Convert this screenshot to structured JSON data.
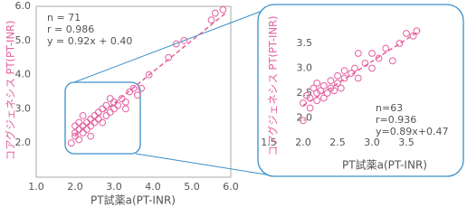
{
  "chart_data": [
    {
      "type": "scatter",
      "x_label": "PT試薬a(PT-INR)",
      "y_label": "コアグジェネシス PT(PT-INR)",
      "annotations": [
        "n = 71",
        "r = 0.986",
        "y = 0.92x + 0.40"
      ],
      "x": [
        1.9,
        2.0,
        2.0,
        2.1,
        2.1,
        2.2,
        2.2,
        2.3,
        2.3,
        2.4,
        2.4,
        2.5,
        2.5,
        2.6,
        2.6,
        2.7,
        2.7,
        2.8,
        2.8,
        2.9,
        3.0,
        3.0,
        3.1,
        3.2,
        3.3,
        3.4,
        3.5,
        3.6,
        2.2,
        2.0,
        2.4,
        3.7,
        3.9,
        4.4,
        4.6,
        4.8,
        5.5,
        5.6,
        5.8,
        3.3,
        2.9,
        2.1
      ],
      "series": [
        {
          "color": "#e4609f",
          "values": [
            2.0,
            2.3,
            2.5,
            2.4,
            2.6,
            2.3,
            2.5,
            2.6,
            2.4,
            2.7,
            2.5,
            2.6,
            2.8,
            2.7,
            2.9,
            2.6,
            3.0,
            2.8,
            3.1,
            2.9,
            3.0,
            3.2,
            3.1,
            3.3,
            3.2,
            3.5,
            3.6,
            3.4,
            2.8,
            2.2,
            2.2,
            3.6,
            4.0,
            4.5,
            4.9,
            5.0,
            5.6,
            5.8,
            5.9,
            3.0,
            3.3,
            2.1
          ]
        }
      ],
      "trend": {
        "x": [
          2.0,
          5.9
        ],
        "values": [
          2.24,
          5.83
        ]
      },
      "xlim": [
        1.0,
        6.0
      ],
      "ylim": [
        1.0,
        6.0
      ],
      "xticks": [
        {
          "value": 1,
          "label": "1.0"
        },
        {
          "value": 2,
          "label": "2.0"
        },
        {
          "value": 3,
          "label": "3.0"
        },
        {
          "value": 4,
          "label": "4.0"
        },
        {
          "value": 5,
          "label": "5.0"
        },
        {
          "value": 6,
          "label": "6.0"
        }
      ],
      "yticks": [
        {
          "value": 2,
          "label": "2.0"
        },
        {
          "value": 3,
          "label": "3.0"
        },
        {
          "value": 4,
          "label": "4.0"
        },
        {
          "value": 5,
          "label": "5.0"
        },
        {
          "value": 6,
          "label": "6.0"
        }
      ]
    },
    {
      "type": "scatter",
      "x_label": "PT試薬a(PT-INR)",
      "y_label": "コアグジェネシス PT(PT-INR)",
      "annotations": [
        "n=63",
        "r=0.936",
        "y=0.89x+0.47"
      ],
      "x": [
        2.0,
        2.0,
        2.05,
        2.1,
        2.1,
        2.15,
        2.2,
        2.2,
        2.25,
        2.3,
        2.3,
        2.35,
        2.4,
        2.4,
        2.45,
        2.5,
        2.5,
        2.55,
        2.6,
        2.6,
        2.7,
        2.75,
        2.8,
        2.9,
        3.0,
        3.0,
        3.1,
        3.2,
        3.3,
        3.4,
        3.5,
        3.6,
        3.65,
        2.2,
        2.8
      ],
      "series": [
        {
          "color": "#e4609f",
          "values": [
            1.95,
            2.3,
            2.45,
            2.2,
            2.4,
            2.6,
            2.35,
            2.5,
            2.55,
            2.4,
            2.65,
            2.5,
            2.6,
            2.75,
            2.55,
            2.7,
            2.85,
            2.6,
            2.8,
            2.95,
            2.9,
            3.0,
            2.8,
            3.1,
            3.0,
            3.3,
            3.2,
            3.4,
            3.15,
            3.5,
            3.7,
            3.65,
            3.75,
            2.7,
            3.3
          ]
        }
      ],
      "trend": {
        "x": [
          2.0,
          3.7
        ],
        "values": [
          2.25,
          3.76
        ]
      },
      "xlim": [
        1.5,
        4.0
      ],
      "ylim": [
        1.5,
        4.0
      ],
      "xticks": [
        {
          "value": 1.5,
          "label": "1.5"
        },
        {
          "value": 2,
          "label": "2.0"
        },
        {
          "value": 2.5,
          "label": "2.5"
        },
        {
          "value": 3,
          "label": "3.0"
        },
        {
          "value": 3.5,
          "label": "3.5"
        }
      ],
      "yticks": [
        {
          "value": 2,
          "label": "2.0"
        },
        {
          "value": 2.5,
          "label": "2.5"
        },
        {
          "value": 3,
          "label": "3.0"
        },
        {
          "value": 3.5,
          "label": "3.5"
        }
      ]
    }
  ]
}
